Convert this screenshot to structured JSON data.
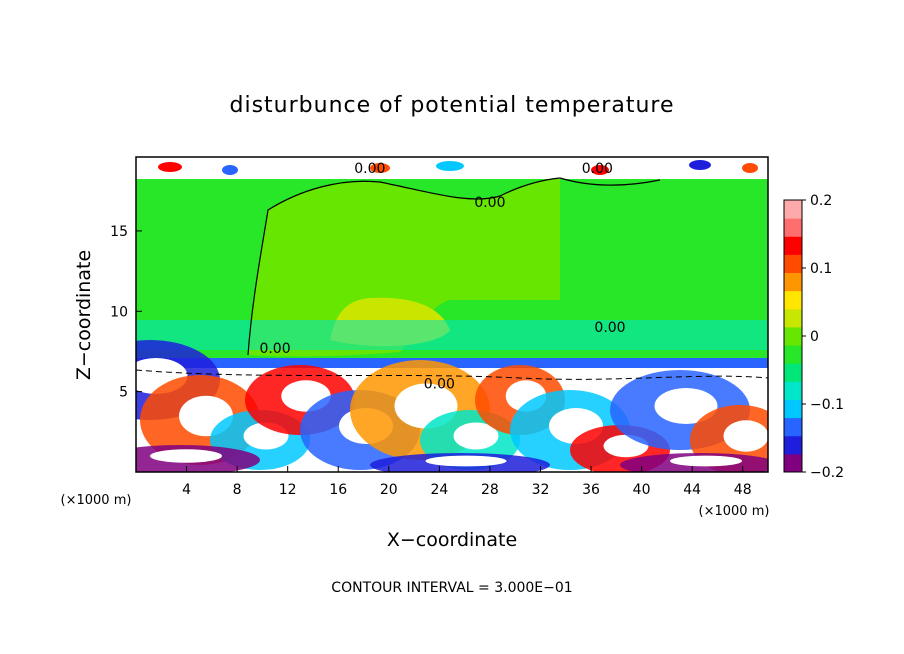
{
  "chart_data": {
    "type": "heatmap",
    "title": "disturbunce of potential temperature",
    "xlabel": "X−coordinate",
    "ylabel": "Z−coordinate",
    "x_unit_left": "(×1000 m)",
    "x_unit_right": "(×1000 m)",
    "footer": "CONTOUR INTERVAL = 3.000E−01",
    "xlim": [
      0,
      50
    ],
    "ylim": [
      0,
      19.6
    ],
    "x_ticks": [
      4,
      8,
      12,
      16,
      20,
      24,
      28,
      32,
      36,
      40,
      44,
      48
    ],
    "y_ticks": [
      5,
      10,
      15
    ],
    "contour_labels": [
      {
        "text": "0.00",
        "x": 18.5,
        "y": 18.6
      },
      {
        "text": "0.00",
        "x": 36.5,
        "y": 18.6
      },
      {
        "text": "0.00",
        "x": 28.0,
        "y": 16.5
      },
      {
        "text": "0.00",
        "x": 37.5,
        "y": 8.7
      },
      {
        "text": "0.00",
        "x": 11.0,
        "y": 7.4
      },
      {
        "text": "0.00",
        "x": 24.0,
        "y": 5.2
      }
    ],
    "colorbar": {
      "min": -0.2,
      "max": 0.2,
      "ticks": [
        "0.2",
        "0.1",
        "0",
        "−0.1",
        "−0.2"
      ],
      "colors": [
        "#800080",
        "#1e1edc",
        "#2864ff",
        "#00c8ff",
        "#00e6c8",
        "#00e678",
        "#28e628",
        "#66e600",
        "#c8e600",
        "#ffe600",
        "#ff9600",
        "#ff4b00",
        "#ff0000",
        "#ff6e6e",
        "#ffaaaa"
      ]
    },
    "fields": {
      "upper_background": "#28e628",
      "upper_blob": "#66e600",
      "stable_band": "#00e6c8",
      "lower_background": "#ffffff"
    }
  }
}
